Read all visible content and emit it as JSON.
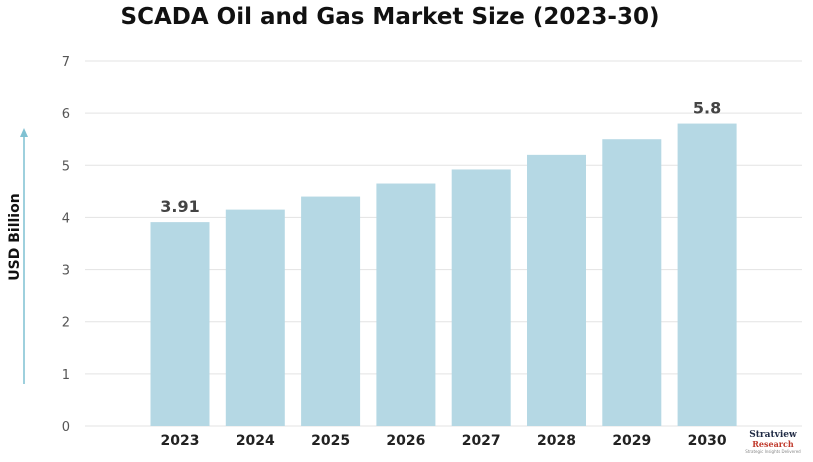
{
  "chart_data": {
    "type": "bar",
    "title": "SCADA Oil and Gas Market Size (2023-30)",
    "ylabel": "USD Billion",
    "xlabel": "",
    "categories": [
      "2023",
      "2024",
      "2025",
      "2026",
      "2027",
      "2028",
      "2029",
      "2030"
    ],
    "values": [
      3.91,
      4.15,
      4.4,
      4.65,
      4.92,
      5.2,
      5.5,
      5.8
    ],
    "data_labels": [
      {
        "category": "2023",
        "text": "3.91"
      },
      {
        "category": "2030",
        "text": "5.8"
      }
    ],
    "ylim": [
      0,
      7
    ],
    "yticks": [
      "0",
      "1",
      "2",
      "3",
      "4",
      "5",
      "6",
      "7"
    ],
    "grid": true,
    "colors": {
      "bar": "#b5d8e4",
      "grid": "#e3e3e3",
      "axis_arrow": "#7fc1d2"
    }
  },
  "logo": {
    "line1": "Stratview",
    "line2": "Research",
    "tagline": "Strategic Insights Delivered"
  }
}
